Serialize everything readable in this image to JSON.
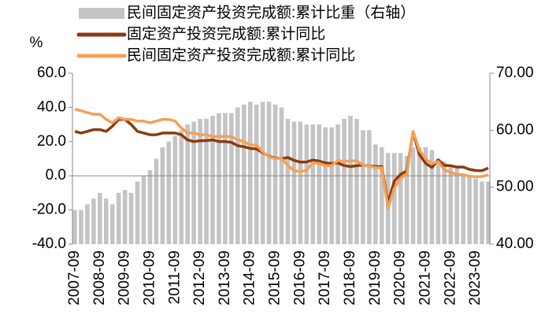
{
  "chart_data": {
    "type": "bar-line",
    "y_label": "%",
    "categories": [
      "2007-09",
      null,
      null,
      null,
      "2008-09",
      null,
      null,
      null,
      "2009-09",
      null,
      null,
      null,
      "2010-09",
      null,
      null,
      null,
      "2011-09",
      null,
      null,
      null,
      "2012-09",
      null,
      null,
      null,
      "2013-09",
      null,
      null,
      null,
      "2014-09",
      null,
      null,
      null,
      "2015-09",
      null,
      null,
      null,
      "2016-09",
      null,
      null,
      null,
      "2017-09",
      null,
      null,
      null,
      "2018-09",
      null,
      null,
      null,
      "2019-09",
      null,
      null,
      null,
      "2020-09",
      null,
      null,
      null,
      "2021-09",
      null,
      null,
      null,
      "2022-09",
      null,
      null,
      null,
      "2023-09",
      null,
      null
    ],
    "series": [
      {
        "name": "民间固定资产投资完成额:累计比重（右轴）",
        "type": "bar",
        "axis": "y2",
        "color": "#c4c4c4",
        "values": [
          46,
          46,
          47,
          48,
          49,
          48,
          47,
          49,
          49.5,
          49,
          51,
          52,
          53,
          55,
          57,
          58,
          59,
          60,
          61,
          61.5,
          62,
          62,
          62.5,
          63,
          63,
          63,
          64,
          64.5,
          65,
          64.5,
          65,
          65,
          64.5,
          64,
          62,
          61.5,
          61.5,
          61,
          61,
          61,
          60.5,
          60.5,
          61,
          62,
          62.5,
          62,
          60,
          60,
          57.5,
          57,
          56,
          56,
          56,
          55.5,
          57,
          57,
          57,
          56.5,
          55,
          54.5,
          53.5,
          53.5,
          52,
          52,
          51.5,
          51,
          51
        ]
      },
      {
        "name": "固定资产投资完成额:累计同比",
        "type": "line",
        "color": "#8e3a10",
        "values": [
          26,
          25,
          26,
          27,
          27,
          26,
          29,
          33,
          33,
          30,
          26,
          25,
          24,
          24,
          25,
          25,
          25,
          24,
          21,
          20,
          20.5,
          20.6,
          21,
          20,
          20,
          19.6,
          17.6,
          17,
          16,
          15.7,
          13.5,
          11.4,
          10.3,
          10,
          10.7,
          9,
          8,
          8.1,
          9.2,
          8.6,
          7.5,
          7.2,
          7.5,
          6,
          5.4,
          5.9,
          6.3,
          5.8,
          5.4,
          5.4,
          -16.1,
          -3.1,
          0.8,
          2.9,
          25.6,
          12.6,
          7.3,
          4.9,
          9.3,
          6.1,
          5.9,
          5.1,
          5.1,
          3.8,
          3.1,
          3.0,
          4.5
        ]
      },
      {
        "name": "民间固定资产投资完成额:累计同比",
        "type": "line",
        "color": "#f4a156",
        "values": [
          39,
          38,
          37,
          36,
          36,
          33,
          31,
          34,
          33,
          33,
          32,
          32,
          31,
          32,
          33,
          33,
          32,
          28,
          25,
          25,
          24,
          24,
          23,
          23,
          23,
          23,
          21,
          20,
          18,
          18,
          14,
          11,
          10,
          10,
          6,
          3,
          2.5,
          3.2,
          7.7,
          7.2,
          6,
          6,
          8.9,
          8.4,
          8.7,
          8.7,
          6.4,
          5.7,
          4.7,
          4.7,
          -18.8,
          -7.3,
          -1.5,
          1,
          26,
          15,
          9.8,
          7,
          8.4,
          3.5,
          2,
          0.9,
          0.6,
          -0.2,
          -0.6,
          -0.4,
          0.5
        ]
      }
    ],
    "ylim": [
      -40,
      60
    ],
    "yticks": [
      {
        "value": -40,
        "label": "-40.0"
      },
      {
        "value": -20,
        "label": "-20.0"
      },
      {
        "value": 0,
        "label": "0.0"
      },
      {
        "value": 20,
        "label": "20.0"
      },
      {
        "value": 40,
        "label": "40.0"
      },
      {
        "value": 60,
        "label": "60.0"
      }
    ],
    "y2lim": [
      40,
      70
    ],
    "y2ticks": [
      {
        "value": 40,
        "label": "40.00"
      },
      {
        "value": 50,
        "label": "50.00"
      },
      {
        "value": 60,
        "label": "60.00"
      },
      {
        "value": 70,
        "label": "70.00"
      }
    ]
  }
}
